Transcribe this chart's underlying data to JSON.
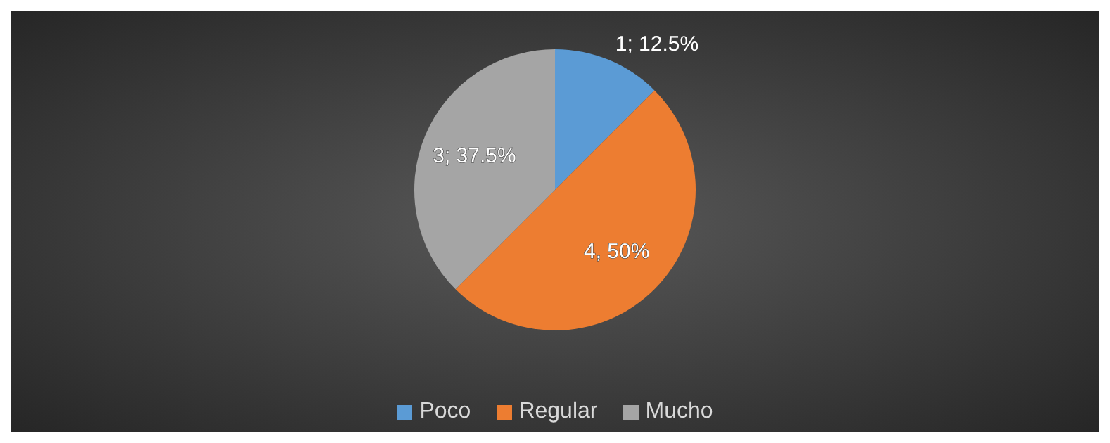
{
  "chart_data": {
    "type": "pie",
    "categories": [
      "Poco",
      "Regular",
      "Mucho"
    ],
    "values": [
      1,
      4,
      3
    ],
    "colors": [
      "#5b9bd5",
      "#ed7d31",
      "#a5a5a5"
    ],
    "value_labels": [
      "1; 12.5%",
      "4, 50%",
      "3; 37.5%"
    ],
    "legend": "bottom"
  }
}
